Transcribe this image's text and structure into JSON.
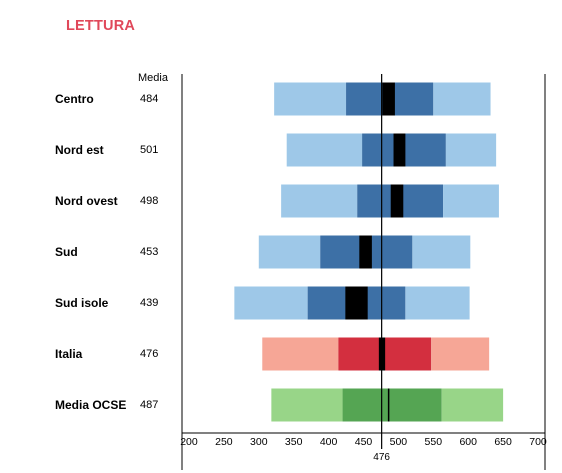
{
  "title": "LETTURA",
  "media_header": "Media",
  "colors": {
    "title": "#e0485a",
    "region_outer": "#9ec8e8",
    "region_mid": "#3d70a6",
    "italia_outer": "#f6a696",
    "italia_mid": "#d32f3f",
    "ocse_outer": "#98d588",
    "ocse_mid": "#55a553",
    "ci": "#000000"
  },
  "chart_data": {
    "type": "percentile-bar",
    "xlim": [
      190,
      710
    ],
    "xticks": [
      200,
      250,
      300,
      350,
      400,
      450,
      500,
      550,
      600,
      650,
      700
    ],
    "reference": {
      "value": 476,
      "label": "476"
    },
    "rows": [
      {
        "name": "Centro",
        "mean": "484",
        "p5": 322,
        "p25": 425,
        "ci_low": 477,
        "ci_high": 495,
        "p75": 550,
        "p95": 632,
        "group": "region"
      },
      {
        "name": "Nord est",
        "mean": "501",
        "p5": 340,
        "p25": 448,
        "ci_low": 493,
        "ci_high": 510,
        "p75": 568,
        "p95": 640,
        "group": "region"
      },
      {
        "name": "Nord ovest",
        "mean": "498",
        "p5": 332,
        "p25": 441,
        "ci_low": 489,
        "ci_high": 507,
        "p75": 564,
        "p95": 644,
        "group": "region"
      },
      {
        "name": "Sud",
        "mean": "453",
        "p5": 300,
        "p25": 388,
        "ci_low": 444,
        "ci_high": 462,
        "p75": 520,
        "p95": 603,
        "group": "region"
      },
      {
        "name": "Sud isole",
        "mean": "439",
        "p5": 265,
        "p25": 370,
        "ci_low": 424,
        "ci_high": 456,
        "p75": 510,
        "p95": 602,
        "group": "region"
      },
      {
        "name": "Italia",
        "mean": "476",
        "p5": 305,
        "p25": 414,
        "ci_low": 472,
        "ci_high": 481,
        "p75": 547,
        "p95": 630,
        "group": "italia"
      },
      {
        "name": "Media OCSE",
        "mean": "487",
        "p5": 318,
        "p25": 420,
        "ci_low": 486,
        "ci_high": 488,
        "p75": 562,
        "p95": 650,
        "group": "ocse"
      }
    ]
  }
}
